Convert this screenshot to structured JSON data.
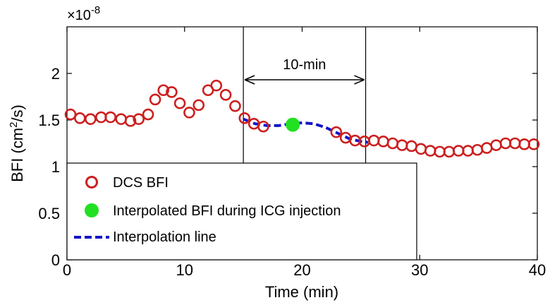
{
  "chart_data": {
    "type": "scatter",
    "xlabel": "Time (min)",
    "ylabel_main": "BFI (cm",
    "ylabel_sup": "2",
    "ylabel_tail": "/s)",
    "scale_base": "×10",
    "scale_exp": "-8",
    "xlim": [
      0,
      40
    ],
    "ylim": [
      0,
      2.5
    ],
    "xticks": [
      0,
      10,
      20,
      30,
      40
    ],
    "xtick_labels": [
      "0",
      "10",
      "20",
      "30",
      "40"
    ],
    "yticks": [
      0,
      0.5,
      1,
      1.5,
      2
    ],
    "ytick_labels": [
      "0",
      "0.5",
      "1",
      "1.5",
      "2"
    ],
    "grid": false,
    "legend_position": "bottom-left",
    "series": [
      {
        "name": "DCS BFI",
        "marker": "open-circle",
        "color": "#cc1f1f",
        "x": [
          0.3,
          1.1,
          2.0,
          2.9,
          3.7,
          4.6,
          5.4,
          6.1,
          6.9,
          7.5,
          8.2,
          8.9,
          9.6,
          10.4,
          11.2,
          12.0,
          12.7,
          13.5,
          14.3,
          15.1,
          15.9,
          16.7,
          22.9,
          23.7,
          24.5,
          25.3,
          26.1,
          26.9,
          27.7,
          28.5,
          29.3,
          30.1,
          30.9,
          31.7,
          32.5,
          33.3,
          34.1,
          34.9,
          35.7,
          36.5,
          37.3,
          38.1,
          38.9,
          39.7
        ],
        "y": [
          1.56,
          1.52,
          1.51,
          1.53,
          1.53,
          1.51,
          1.49,
          1.51,
          1.56,
          1.72,
          1.82,
          1.8,
          1.68,
          1.58,
          1.66,
          1.82,
          1.87,
          1.77,
          1.65,
          1.52,
          1.46,
          1.43,
          1.37,
          1.31,
          1.28,
          1.27,
          1.28,
          1.27,
          1.25,
          1.23,
          1.22,
          1.19,
          1.17,
          1.16,
          1.16,
          1.17,
          1.17,
          1.18,
          1.2,
          1.23,
          1.25,
          1.25,
          1.24,
          1.24
        ]
      },
      {
        "name": "Interpolated BFI during ICG injection",
        "marker": "filled-circle",
        "color": "#22e022",
        "x": [
          19.2
        ],
        "y": [
          1.45
        ]
      },
      {
        "name": "Interpolation line",
        "marker": "dashed-line",
        "color": "#1414c8",
        "x": [
          15.0,
          16.0,
          17.0,
          18.0,
          19.0,
          20.0,
          21.0,
          22.0,
          23.0,
          24.0,
          25.0,
          25.6
        ],
        "y": [
          1.51,
          1.46,
          1.44,
          1.44,
          1.46,
          1.47,
          1.46,
          1.42,
          1.36,
          1.3,
          1.27,
          1.26
        ]
      }
    ],
    "annotations": {
      "window_lines_x": [
        15,
        25.4
      ],
      "window_label": "10-min"
    }
  }
}
